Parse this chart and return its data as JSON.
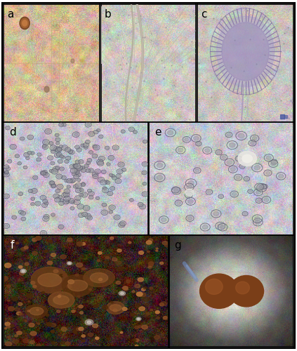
{
  "label_fontsize": 11,
  "label_color_dark": "#000000",
  "label_color_light": "#ffffff",
  "border_color": "#000000",
  "border_linewidth": 1.2,
  "background_color": "#ffffff",
  "panel_a": {
    "bg_base": [
      210,
      185,
      150
    ],
    "bg_noise": 18,
    "grid_color": [
      190,
      165,
      130
    ],
    "spore_color": [
      120,
      75,
      45
    ],
    "filament_color": [
      175,
      160,
      140
    ]
  },
  "panel_b": {
    "bg_base": [
      205,
      200,
      192
    ],
    "bg_noise": 15,
    "filament_color": [
      160,
      155,
      148
    ]
  },
  "panel_c": {
    "bg_base": [
      200,
      196,
      190
    ],
    "bg_noise": 14,
    "vesicle_color": [
      140,
      128,
      170
    ],
    "vesicle_fill": [
      170,
      160,
      195
    ]
  },
  "panel_d": {
    "bg_base": [
      198,
      196,
      202
    ],
    "bg_noise": 16,
    "conidia_edge": [
      90,
      88,
      100
    ],
    "conidia_fill": [
      150,
      148,
      158
    ]
  },
  "panel_e": {
    "bg_base": [
      200,
      198,
      204
    ],
    "bg_noise": 16,
    "conidia_edge": [
      95,
      92,
      105
    ],
    "conidia_fill": [
      155,
      152,
      162
    ]
  },
  "panel_f": {
    "bg_base": [
      55,
      35,
      22
    ],
    "bg_noise": 20,
    "sclerotia_dark": [
      80,
      50,
      28
    ],
    "sclerotia_light": [
      140,
      100,
      60
    ]
  },
  "panel_g": {
    "bg_base": [
      218,
      214,
      208
    ],
    "bg_noise": 12,
    "sclerotia_color": [
      130,
      75,
      40
    ]
  }
}
